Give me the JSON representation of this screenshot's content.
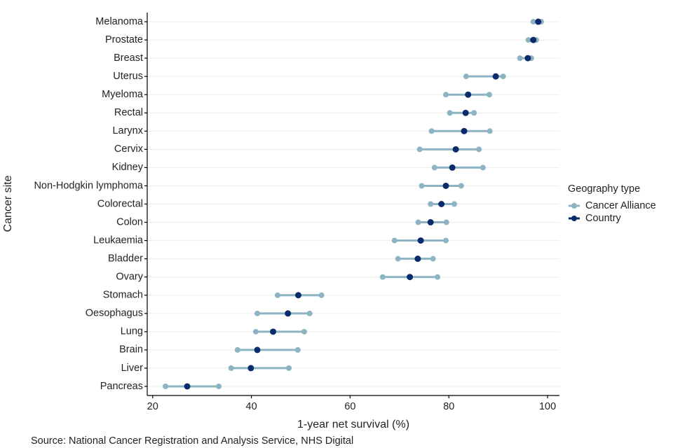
{
  "chart_data": {
    "type": "dumbbell",
    "x_label": "1-year net survival (%)",
    "y_label": "Cancer site",
    "source": "Source: National Cancer Registration and Analysis Service, NHS Digital",
    "legend_title": "Geography type",
    "legend_position": "right",
    "grid": true,
    "categories": [
      "Melanoma",
      "Prostate",
      "Breast",
      "Uterus",
      "Myeloma",
      "Rectal",
      "Larynx",
      "Cervix",
      "Kidney",
      "Non-Hodgkin lymphoma",
      "Colorectal",
      "Colon",
      "Leukaemia",
      "Bladder",
      "Ovary",
      "Stomach",
      "Oesophagus",
      "Lung",
      "Brain",
      "Liver",
      "Pancreas"
    ],
    "series": [
      {
        "name": "Cancer Alliance",
        "color": "#8cb4c2",
        "low": [
          97.1,
          96.1,
          94.4,
          83.5,
          79.4,
          80.2,
          76.5,
          74.1,
          77.1,
          74.5,
          76.3,
          73.8,
          69.0,
          69.7,
          66.6,
          45.3,
          41.2,
          40.9,
          37.2,
          35.9,
          22.6
        ],
        "high": [
          98.7,
          97.7,
          96.7,
          91.0,
          88.2,
          85.1,
          88.3,
          86.1,
          86.9,
          82.5,
          81.1,
          79.5,
          79.4,
          76.8,
          77.7,
          54.2,
          51.8,
          50.7,
          49.4,
          47.6,
          33.4
        ]
      },
      {
        "name": "Country",
        "color": "#0b2c6b",
        "values": [
          98.1,
          97.1,
          96.0,
          89.5,
          83.9,
          83.4,
          83.1,
          81.4,
          80.7,
          79.4,
          78.5,
          76.3,
          74.3,
          73.7,
          72.1,
          49.5,
          47.4,
          44.4,
          41.2,
          39.9,
          27.0
        ]
      }
    ],
    "xlim": [
      18.9,
      102.4
    ],
    "xticks": [
      20,
      40,
      60,
      80,
      100
    ]
  }
}
